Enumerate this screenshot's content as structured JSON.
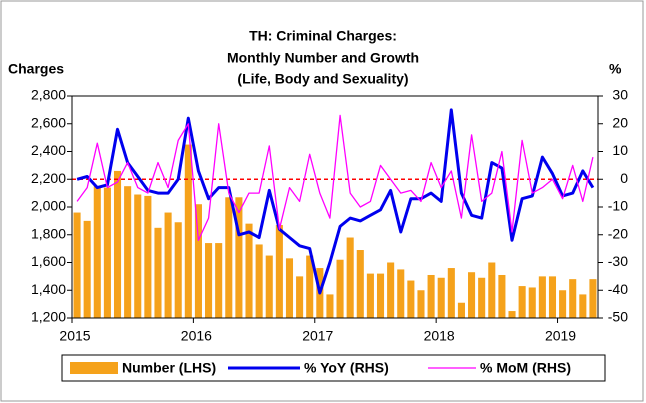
{
  "chart_data": {
    "type": "bar_line",
    "title": [
      "TH: Criminal Charges:",
      "Monthly Number and Growth",
      "(Life, Body and Sexuality)"
    ],
    "y_label": "Charges",
    "y2_label": "%",
    "categories": [
      "2015",
      null,
      null,
      null,
      null,
      null,
      null,
      null,
      null,
      null,
      null,
      null,
      "2016",
      null,
      null,
      null,
      null,
      null,
      null,
      null,
      null,
      null,
      null,
      null,
      "2017",
      null,
      null,
      null,
      null,
      null,
      null,
      null,
      null,
      null,
      null,
      null,
      "2018",
      null,
      null,
      null,
      null,
      null,
      null,
      null,
      null,
      null,
      null,
      null,
      "2019",
      null,
      null,
      null
    ],
    "series": [
      {
        "name": "Number (LHS)",
        "kind": "bar",
        "color": "#f5a21b",
        "values": [
          1960,
          1900,
          2150,
          2140,
          2260,
          2150,
          2090,
          2080,
          1850,
          1960,
          1890,
          2450,
          2020,
          1740,
          1740,
          2070,
          2070,
          1880,
          1730,
          1650,
          1870,
          1630,
          1500,
          1650,
          1560,
          1370,
          1620,
          1780,
          1690,
          1520,
          1520,
          1600,
          1550,
          1470,
          1400,
          1510,
          1490,
          1560,
          1310,
          1530,
          1490,
          1600,
          1510,
          1250,
          1430,
          1420,
          1500,
          1500,
          1400,
          1480,
          1370,
          1480
        ]
      },
      {
        "name": "% YoY (RHS)",
        "kind": "line",
        "axis": "y2",
        "color": "#0000ee",
        "values": [
          0,
          1,
          -3,
          -2,
          18,
          6,
          1,
          -4,
          -5,
          -5,
          0,
          22,
          3,
          -7,
          -3,
          -3,
          -20,
          -19,
          -21,
          -4,
          -18,
          -21,
          -24,
          -25,
          -41,
          -30,
          -17,
          -14,
          -15,
          -13,
          -11,
          -4,
          -19,
          -7,
          -7,
          -5,
          -8,
          25,
          -5,
          -13,
          -14,
          6,
          4,
          -22,
          -7,
          -6,
          8,
          2,
          -6,
          -5,
          3,
          -3
        ]
      },
      {
        "name": "% MoM (RHS)",
        "kind": "line",
        "axis": "y2",
        "color": "#ff00ff",
        "values": [
          -8,
          -3,
          13,
          -3,
          -1,
          6,
          -3,
          -5,
          6,
          -3,
          14,
          20,
          -22,
          -14,
          20,
          -5,
          -12,
          -5,
          -5,
          12,
          -18,
          -3,
          -8,
          9,
          -5,
          -14,
          23,
          -5,
          -10,
          -8,
          5,
          0,
          -5,
          -4,
          -8,
          6,
          -3,
          3,
          -14,
          16,
          -8,
          -5,
          10,
          -19,
          14,
          -5,
          -3,
          0,
          -7,
          5,
          -8,
          8
        ]
      }
    ],
    "ylim": [
      1200,
      2800
    ],
    "yticks": [
      {
        "value": 1200,
        "label": "1,200"
      },
      {
        "value": 1400,
        "label": "1,400"
      },
      {
        "value": 1600,
        "label": "1,600"
      },
      {
        "value": 1800,
        "label": "1,800"
      },
      {
        "value": 2000,
        "label": "2,000"
      },
      {
        "value": 2200,
        "label": "2,200"
      },
      {
        "value": 2400,
        "label": "2,400"
      },
      {
        "value": 2600,
        "label": "2,600"
      },
      {
        "value": 2800,
        "label": "2,800"
      }
    ],
    "y2lim": [
      -50,
      30
    ],
    "y2ticks": [
      -50,
      -40,
      -30,
      -20,
      -10,
      0,
      10,
      20,
      30
    ],
    "reference_line": {
      "axis": "y2",
      "value": 0,
      "color": "#ff0000"
    },
    "legend": "bottom"
  }
}
